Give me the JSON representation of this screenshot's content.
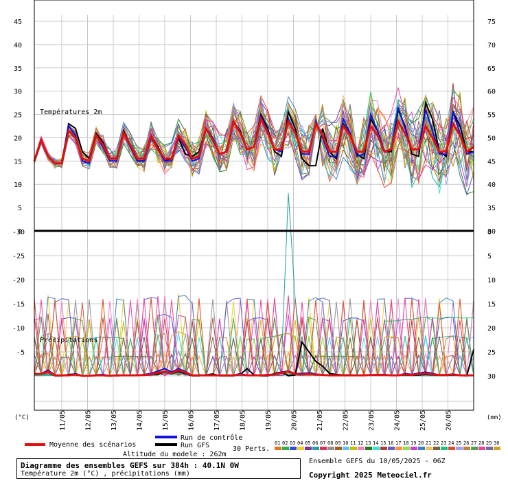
{
  "chart_data": {
    "type": "line",
    "upper_panel": {
      "label": "Températures 2m",
      "unit_label": "(°C)",
      "left_ticks": [
        "45",
        "40",
        "35",
        "30",
        "25",
        "20",
        "15",
        "10",
        "5",
        "0"
      ],
      "right_ticks": [
        "75",
        "70",
        "65",
        "60",
        "55",
        "50",
        "45",
        "40",
        "35",
        "30"
      ],
      "ylim": [
        0,
        45
      ],
      "x_dates": [
        "11/05",
        "12/05",
        "13/05",
        "14/05",
        "15/05",
        "16/05",
        "17/05",
        "18/05",
        "19/05",
        "20/05",
        "21/05",
        "22/05",
        "23/05",
        "24/05",
        "25/05",
        "26/05"
      ],
      "mean_series": [
        15.0,
        19.5,
        16.0,
        14.5,
        14.5,
        21.5,
        20.0,
        15.5,
        15.0,
        20.5,
        18.5,
        15.5,
        15.5,
        21.0,
        18.5,
        15.5,
        15.5,
        20.5,
        17.5,
        15.5,
        15.5,
        20.5,
        18.5,
        15.5,
        16.0,
        22.0,
        19.5,
        16.5,
        17.0,
        23.5,
        21.0,
        17.5,
        18.0,
        24.0,
        21.0,
        17.5,
        17.5,
        23.5,
        21.0,
        17.0,
        17.0,
        23.0,
        20.5,
        17.0,
        17.0,
        22.5,
        20.5,
        17.0,
        17.0,
        22.5,
        20.5,
        17.0,
        17.5,
        23.5,
        21.0,
        17.5,
        17.5,
        22.5,
        20.0,
        17.0,
        17.0,
        23.0,
        20.5,
        17.0,
        18.0
      ],
      "control_series": [
        15.0,
        19.5,
        16.0,
        14.5,
        14.5,
        22.5,
        20.5,
        15.0,
        14.5,
        20.5,
        18.0,
        15.0,
        15.0,
        21.0,
        18.0,
        15.0,
        15.0,
        20.0,
        17.5,
        15.0,
        15.0,
        20.0,
        18.0,
        15.0,
        15.5,
        22.0,
        20.0,
        16.5,
        17.0,
        23.5,
        21.0,
        17.5,
        18.0,
        24.5,
        21.5,
        17.5,
        17.0,
        24.0,
        21.0,
        16.5,
        16.5,
        23.5,
        20.0,
        16.0,
        16.0,
        24.0,
        21.0,
        16.0,
        16.5,
        25.0,
        21.5,
        17.0,
        17.5,
        26.5,
        22.0,
        17.5,
        17.5,
        26.0,
        21.5,
        16.5,
        16.5,
        25.5,
        21.0,
        16.5,
        17.0
      ],
      "gfs_series": [
        15.0,
        19.5,
        16.0,
        14.5,
        14.5,
        23.0,
        22.0,
        17.0,
        15.5,
        21.0,
        19.0,
        15.5,
        15.5,
        21.5,
        18.5,
        15.0,
        15.0,
        20.5,
        18.0,
        15.0,
        15.5,
        20.0,
        16.5,
        16.0,
        17.0,
        22.0,
        19.5,
        16.5,
        17.0,
        23.5,
        21.5,
        17.5,
        18.0,
        25.0,
        22.0,
        17.0,
        16.0,
        25.5,
        22.0,
        15.5,
        14.0,
        14.0,
        22.0,
        17.0,
        15.5,
        23.0,
        20.5,
        16.5,
        15.5,
        24.0,
        21.5,
        17.0,
        17.0,
        26.0,
        22.5,
        16.5,
        16.0,
        27.5,
        24.0,
        17.0,
        16.0,
        25.5,
        22.5,
        17.0,
        17.0
      ]
    },
    "lower_panel": {
      "label": "Précipitations",
      "unit_label": "(mm)",
      "left_ticks": [
        "0",
        "-5",
        "-10",
        "-15",
        "-20",
        "-25",
        "-30"
      ],
      "right_ticks": [
        "30",
        "25",
        "20",
        "15",
        "10",
        "5",
        "0"
      ],
      "ylim": [
        0,
        30
      ],
      "mean_series": [
        0.4,
        0.4,
        0.9,
        0.1,
        0.1,
        0.1,
        0.3,
        0.0,
        0.0,
        0.1,
        0.1,
        0.0,
        0.1,
        0.1,
        0.1,
        0.1,
        0.2,
        0.3,
        0.7,
        0.8,
        0.6,
        1.2,
        0.7,
        0.1,
        0.1,
        0.1,
        0.1,
        0.1,
        0.1,
        0.1,
        0.3,
        0.1,
        0.1,
        0.1,
        0.2,
        0.3,
        0.6,
        0.9,
        0.4,
        0.3,
        0.4,
        0.3,
        0.2,
        0.1,
        0.1,
        0.1,
        0.1,
        0.1,
        0.1,
        0.2,
        0.2,
        0.2,
        0.1,
        0.1,
        0.3,
        0.2,
        0.4,
        0.5,
        0.3,
        0.2,
        0.2,
        0.3,
        0.1,
        0.1,
        0.1
      ],
      "control_series": [
        0.3,
        0.5,
        1.2,
        0.2,
        0.1,
        0.1,
        0.5,
        0.0,
        0.0,
        0.2,
        0.3,
        0.0,
        0.1,
        0.1,
        0.1,
        0.1,
        0.3,
        0.5,
        1.0,
        1.5,
        0.8,
        1.5,
        0.9,
        0.1,
        0.1,
        0.1,
        0.2,
        0.1,
        0.1,
        0.1,
        0.5,
        0.1,
        0.1,
        0.1,
        0.3,
        0.2,
        0.8,
        1.0,
        0.5,
        0.5,
        0.6,
        0.4,
        0.2,
        0.1,
        0.1,
        0.1,
        0.1,
        0.1,
        0.1,
        0.2,
        0.3,
        0.3,
        0.1,
        0.1,
        0.5,
        0.3,
        0.6,
        0.8,
        0.5,
        0.2,
        0.2,
        0.4,
        0.1,
        0.1,
        0.1
      ],
      "gfs_series": [
        0.5,
        0.4,
        0.8,
        0.0,
        0.0,
        0.3,
        0.4,
        0.0,
        0.0,
        0.1,
        0.2,
        0.0,
        0.0,
        0.1,
        0.1,
        0.2,
        0.1,
        0.3,
        0.4,
        0.8,
        0.5,
        0.9,
        0.5,
        0.0,
        0.0,
        0.2,
        0.4,
        0.0,
        0.0,
        0.0,
        0.3,
        1.5,
        0.2,
        0.0,
        0.0,
        0.5,
        0.8,
        0.0,
        0.2,
        7.0,
        5.0,
        3.0,
        2.0,
        0.5,
        0.3,
        0.2,
        0.2,
        0.1,
        0.1,
        0.2,
        0.3,
        0.2,
        0.1,
        0.1,
        0.2,
        0.1,
        0.2,
        0.3,
        0.2,
        0.1,
        0.1,
        0.2,
        0.1,
        0.0,
        5.5
      ],
      "peak_member_series": [
        0.2,
        0.2,
        0.3,
        0.0,
        0.0,
        0.0,
        0.1,
        0.0,
        0.0,
        0.0,
        0.0,
        0.0,
        0.0,
        0.0,
        0.0,
        0.0,
        0.1,
        0.2,
        0.4,
        0.6,
        0.3,
        0.5,
        0.4,
        0.0,
        0.0,
        0.0,
        0.0,
        0.0,
        0.0,
        0.0,
        0.0,
        0.0,
        0.0,
        0.0,
        0.0,
        0.0,
        3.0,
        38.0,
        16.0,
        4.0,
        1.0,
        0.3,
        0.1,
        0.0,
        0.0,
        0.0,
        0.0,
        0.0,
        0.0,
        0.0,
        0.0,
        0.0,
        0.0,
        0.0,
        0.0,
        0.0,
        0.0,
        0.0,
        0.0,
        0.0,
        0.0,
        0.0,
        0.0,
        0.0,
        0.0
      ]
    },
    "legend": {
      "mean": "Moyenne des scénarios",
      "control": "Run de contrôle",
      "gfs": "Run GFS",
      "perts": "30 Perts.",
      "perts_labels": [
        "01",
        "02",
        "03",
        "04",
        "05",
        "06",
        "07",
        "08",
        "09",
        "10",
        "11",
        "12",
        "13",
        "14",
        "15",
        "16",
        "17",
        "18",
        "19",
        "20",
        "21",
        "22",
        "23",
        "24",
        "25",
        "26",
        "27",
        "28",
        "29",
        "30"
      ],
      "perts_colors": [
        "#e07820",
        "#30b040",
        "#3050e0",
        "#f0d020",
        "#8030a0",
        "#20a0a0",
        "#e03060",
        "#909090",
        "#a06020",
        "#60c0f0",
        "#c0c000",
        "#f080c0",
        "#208020",
        "#40e0d0",
        "#b04040",
        "#6060c0",
        "#ff9040",
        "#90e050",
        "#d040d0",
        "#4080c0",
        "#f0c060",
        "#806040",
        "#20c080",
        "#e05030",
        "#a0a0f0",
        "#c08040",
        "#50a050",
        "#f040a0",
        "#7070a0",
        "#d0a020"
      ]
    },
    "mean_color": "#e01010",
    "control_color": "#1010e0",
    "gfs_color": "#000000",
    "altitude": "Altitude du modele : 262m"
  },
  "footer": {
    "title": "Diagramme des ensembles GEFS sur 384h : 40.1N 0W",
    "subtitle": "Température 2m (°C) , précipitations (mm)",
    "ensemble_info": "Ensemble GEFS du 10/05/2025 - 06Z",
    "copyright": "Copyright 2025 Meteociel.fr"
  }
}
